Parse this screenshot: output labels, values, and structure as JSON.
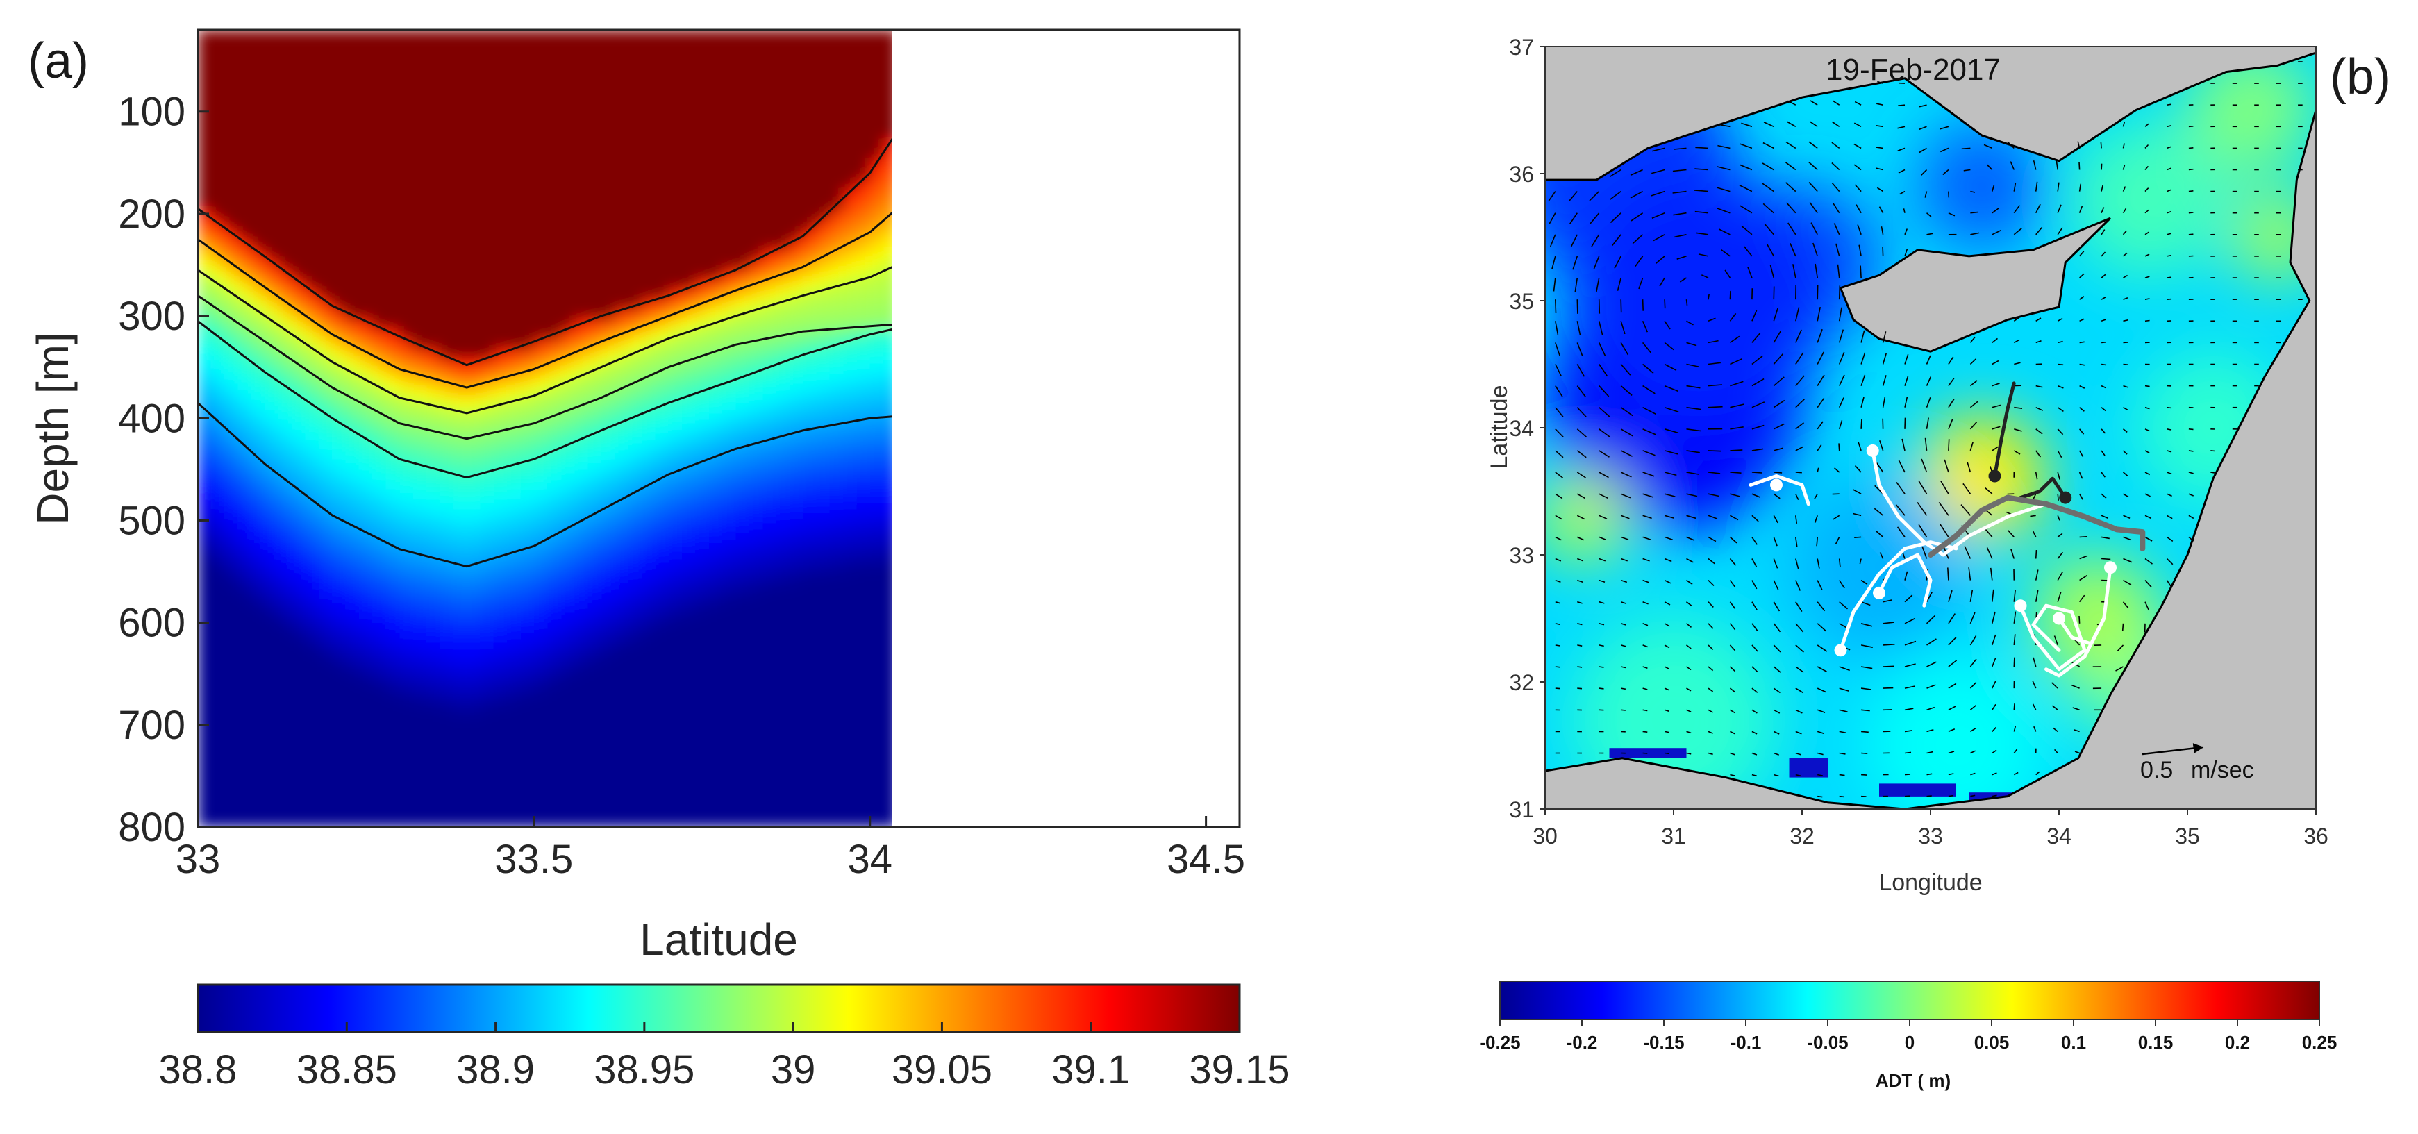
{
  "chart_data": [
    {
      "panel": "(a)",
      "type": "heatmap",
      "xlabel": "Latitude",
      "ylabel": "Depth [m]",
      "xlim": [
        33,
        34.55
      ],
      "ylim": [
        800,
        20
      ],
      "y_reversed": true,
      "data_xlim": [
        33,
        34.04
      ],
      "xticks": [
        33,
        33.5,
        34,
        34.5
      ],
      "xtick_labels": [
        "33",
        "33.5",
        "34",
        "34.5"
      ],
      "yticks": [
        100,
        200,
        300,
        400,
        500,
        600,
        700,
        800
      ],
      "ytick_labels": [
        "100",
        "200",
        "300",
        "400",
        "500",
        "600",
        "700",
        "800"
      ],
      "colorbar": {
        "range": [
          38.8,
          39.15
        ],
        "ticks": [
          38.8,
          38.85,
          38.9,
          38.95,
          39,
          39.05,
          39.1,
          39.15
        ],
        "tick_labels": [
          "38.8",
          "38.85",
          "38.9",
          "38.95",
          "39",
          "39.05",
          "39.1",
          "39.15"
        ],
        "colormap": "jet"
      },
      "contours": [
        {
          "level": 39.1,
          "lat": [
            33,
            33.1,
            33.2,
            33.3,
            33.4,
            33.5,
            33.6,
            33.7,
            33.8,
            33.9,
            34,
            34.04
          ],
          "depth": [
            195,
            242,
            290,
            320,
            348,
            325,
            300,
            280,
            255,
            222,
            160,
            120
          ]
        },
        {
          "level": 39.05,
          "lat": [
            33,
            33.1,
            33.2,
            33.3,
            33.4,
            33.5,
            33.6,
            33.7,
            33.8,
            33.9,
            34,
            34.04
          ],
          "depth": [
            225,
            272,
            318,
            352,
            370,
            352,
            325,
            300,
            275,
            252,
            218,
            195
          ]
        },
        {
          "level": 39.0,
          "lat": [
            33,
            33.1,
            33.2,
            33.3,
            33.4,
            33.5,
            33.6,
            33.7,
            33.8,
            33.9,
            34,
            34.04
          ],
          "depth": [
            255,
            300,
            345,
            380,
            395,
            378,
            350,
            322,
            300,
            280,
            262,
            250
          ]
        },
        {
          "level": 38.98,
          "lat": [
            33,
            33.1,
            33.2,
            33.3,
            33.4,
            33.5,
            33.6,
            33.7,
            33.8,
            33.9,
            34,
            34.04
          ],
          "depth": [
            280,
            325,
            370,
            405,
            420,
            405,
            380,
            350,
            328,
            315,
            310,
            308
          ]
        },
        {
          "level": 38.95,
          "lat": [
            33,
            33.1,
            33.2,
            33.3,
            33.4,
            33.5,
            33.6,
            33.7,
            33.8,
            33.9,
            34,
            34.04
          ],
          "depth": [
            305,
            355,
            400,
            440,
            458,
            440,
            412,
            385,
            362,
            338,
            318,
            312
          ]
        },
        {
          "level": 38.9,
          "lat": [
            33,
            33.1,
            33.2,
            33.3,
            33.4,
            33.5,
            33.6,
            33.7,
            33.8,
            33.9,
            34,
            34.04
          ],
          "depth": [
            385,
            445,
            495,
            528,
            545,
            525,
            490,
            455,
            430,
            412,
            400,
            398
          ]
        }
      ]
    },
    {
      "panel": "(b)",
      "type": "heatmap",
      "title": "19-Feb-2017",
      "xlabel": "Longitude",
      "ylabel": "Latitude",
      "xlim": [
        30,
        36
      ],
      "ylim": [
        31,
        37
      ],
      "xticks": [
        30,
        31,
        32,
        33,
        34,
        35,
        36
      ],
      "xtick_labels": [
        "30",
        "31",
        "32",
        "33",
        "34",
        "35",
        "36"
      ],
      "yticks": [
        31,
        32,
        33,
        34,
        35,
        36,
        37
      ],
      "ytick_labels": [
        "31",
        "32",
        "33",
        "34",
        "35",
        "36",
        "37"
      ],
      "colorbar": {
        "title": "ADT ( m)",
        "range": [
          -0.25,
          0.25
        ],
        "ticks": [
          -0.25,
          -0.2,
          -0.15,
          -0.1,
          -0.05,
          0,
          0.05,
          0.1,
          0.15,
          0.2,
          0.25
        ],
        "tick_labels": [
          "-0.25",
          "-0.2",
          "-0.15",
          "-0.1",
          "-0.05",
          "0",
          "0.05",
          "0.1",
          "0.15",
          "0.2",
          "0.25"
        ],
        "colormap": "jet"
      },
      "velocity_scale": {
        "value": "0.5",
        "unit": "m/sec"
      },
      "features": [
        {
          "kind": "eddy",
          "lon": 33.4,
          "lat": 33.6,
          "adt": 0.07,
          "radius": 0.5
        },
        {
          "kind": "eddy",
          "lon": 34.3,
          "lat": 32.5,
          "adt": 0.02,
          "radius": 0.5
        },
        {
          "kind": "eddy",
          "lon": 31.2,
          "lat": 35.0,
          "adt": -0.17,
          "radius": 1.0
        },
        {
          "kind": "eddy",
          "lon": 33.4,
          "lat": 35.9,
          "adt": -0.14,
          "radius": 0.5
        },
        {
          "kind": "eddy",
          "lon": 32.6,
          "lat": 32.9,
          "adt": -0.1,
          "radius": 0.7
        }
      ],
      "trajectories": [
        {
          "color": "white",
          "lon": [
            31.6,
            31.8,
            32.0,
            32.05
          ],
          "lat": [
            33.55,
            33.62,
            33.55,
            33.4
          ],
          "start": [
            31.8,
            33.55
          ]
        },
        {
          "color": "white",
          "lon": [
            32.55,
            32.6,
            32.75,
            32.95,
            33.1,
            33.3,
            33.6,
            33.9,
            34.2
          ],
          "lat": [
            33.82,
            33.55,
            33.3,
            33.1,
            33.0,
            33.15,
            33.3,
            33.4,
            33.3
          ],
          "start": [
            32.55,
            33.82
          ]
        },
        {
          "color": "white",
          "lon": [
            32.3,
            32.4,
            32.6,
            32.8,
            33.0,
            33.2
          ],
          "lat": [
            32.25,
            32.55,
            32.85,
            33.05,
            33.1,
            33.05
          ],
          "start": [
            32.3,
            32.25
          ]
        },
        {
          "color": "white",
          "lon": [
            32.6,
            32.7,
            32.9,
            33.0,
            32.95
          ],
          "lat": [
            32.7,
            32.9,
            33.0,
            32.8,
            32.6
          ],
          "start": [
            32.6,
            32.7
          ]
        },
        {
          "color": "white",
          "lon": [
            33.7,
            33.8,
            34.0,
            34.2,
            34.1,
            33.9,
            33.8,
            34.0
          ],
          "lat": [
            32.6,
            32.35,
            32.1,
            32.25,
            32.55,
            32.6,
            32.45,
            32.25
          ],
          "start": [
            33.7,
            32.6
          ]
        },
        {
          "color": "white",
          "lon": [
            34.4,
            34.35,
            34.2,
            34.0,
            33.9
          ],
          "lat": [
            32.9,
            32.5,
            32.2,
            32.05,
            32.1
          ],
          "start": [
            34.4,
            32.9
          ]
        },
        {
          "color": "white",
          "lon": [
            34.0,
            34.1,
            34.25,
            34.35
          ],
          "lat": [
            32.5,
            32.35,
            32.3,
            32.5
          ],
          "start": [
            34.0,
            32.5
          ]
        },
        {
          "color": "black",
          "lon": [
            33.5,
            33.55,
            33.6,
            33.65
          ],
          "lat": [
            33.62,
            33.9,
            34.15,
            34.35
          ],
          "start": [
            33.5,
            33.62
          ]
        },
        {
          "color": "black",
          "lon": [
            33.7,
            33.85,
            33.95,
            34.05
          ],
          "lat": [
            33.45,
            33.5,
            33.6,
            33.45
          ],
          "start": [
            34.05,
            33.45
          ]
        },
        {
          "color": "gray",
          "lon": [
            33.0,
            33.2,
            33.4,
            33.6,
            33.9,
            34.2,
            34.45,
            34.65,
            34.65
          ],
          "lat": [
            33.0,
            33.15,
            33.35,
            33.45,
            33.4,
            33.3,
            33.2,
            33.18,
            33.05
          ]
        }
      ]
    }
  ]
}
